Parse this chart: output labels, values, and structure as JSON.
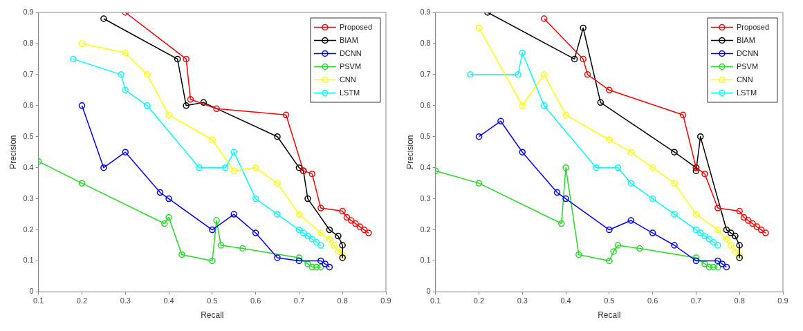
{
  "chart_data": [
    {
      "type": "line",
      "xlabel": "Recall",
      "ylabel": "Precision",
      "xlim": [
        0.1,
        0.9
      ],
      "ylim": [
        0,
        0.9
      ],
      "xticks": [
        0.1,
        0.2,
        0.3,
        0.4,
        0.5,
        0.6,
        0.7,
        0.8,
        0.9
      ],
      "yticks": [
        0,
        0.1,
        0.2,
        0.3,
        0.4,
        0.5,
        0.6,
        0.7,
        0.8,
        0.9
      ],
      "grid": false,
      "legend": "top right",
      "marker": "circle",
      "line_style": "solid",
      "series": [
        {
          "name": "Proposed",
          "color": "#ff0000",
          "x": [
            0.3,
            0.44,
            0.45,
            0.51,
            0.67,
            0.71,
            0.73,
            0.75,
            0.8,
            0.81,
            0.82,
            0.83,
            0.84,
            0.85,
            0.86
          ],
          "values": [
            0.9,
            0.75,
            0.62,
            0.59,
            0.57,
            0.39,
            0.38,
            0.27,
            0.26,
            0.24,
            0.23,
            0.22,
            0.21,
            0.2,
            0.19
          ]
        },
        {
          "name": "BIAM",
          "color": "#000000",
          "x": [
            0.25,
            0.42,
            0.44,
            0.48,
            0.65,
            0.7,
            0.71,
            0.72,
            0.77,
            0.79,
            0.8,
            0.8
          ],
          "values": [
            0.88,
            0.75,
            0.6,
            0.61,
            0.5,
            0.4,
            0.39,
            0.3,
            0.2,
            0.18,
            0.15,
            0.11
          ]
        },
        {
          "name": "DCNN",
          "color": "#0000ff",
          "x": [
            0.2,
            0.25,
            0.3,
            0.38,
            0.4,
            0.5,
            0.55,
            0.6,
            0.65,
            0.7,
            0.75,
            0.76,
            0.77
          ],
          "values": [
            0.6,
            0.4,
            0.45,
            0.32,
            0.3,
            0.2,
            0.25,
            0.19,
            0.11,
            0.1,
            0.1,
            0.09,
            0.08
          ]
        },
        {
          "name": "PSVM",
          "color": "#22dd22",
          "x": [
            0.1,
            0.2,
            0.39,
            0.4,
            0.43,
            0.5,
            0.51,
            0.52,
            0.57,
            0.7,
            0.72,
            0.73,
            0.74,
            0.75
          ],
          "values": [
            0.42,
            0.35,
            0.22,
            0.24,
            0.12,
            0.1,
            0.23,
            0.15,
            0.14,
            0.11,
            0.09,
            0.08,
            0.08,
            0.08
          ]
        },
        {
          "name": "CNN",
          "color": "#ffff00",
          "x": [
            0.2,
            0.3,
            0.35,
            0.4,
            0.5,
            0.55,
            0.6,
            0.65,
            0.7,
            0.75,
            0.77,
            0.78,
            0.79,
            0.8
          ],
          "values": [
            0.8,
            0.77,
            0.7,
            0.57,
            0.49,
            0.39,
            0.4,
            0.35,
            0.25,
            0.19,
            0.17,
            0.15,
            0.13,
            0.12
          ]
        },
        {
          "name": "LSTM",
          "color": "#00ffff",
          "x": [
            0.18,
            0.29,
            0.3,
            0.35,
            0.47,
            0.53,
            0.55,
            0.6,
            0.65,
            0.7,
            0.71,
            0.72,
            0.73,
            0.74,
            0.75
          ],
          "values": [
            0.75,
            0.7,
            0.65,
            0.6,
            0.4,
            0.4,
            0.45,
            0.3,
            0.25,
            0.2,
            0.19,
            0.18,
            0.17,
            0.16,
            0.15
          ]
        }
      ]
    },
    {
      "type": "line",
      "xlabel": "Recall",
      "ylabel": "Precision",
      "xlim": [
        0.1,
        0.9
      ],
      "ylim": [
        0,
        0.9
      ],
      "xticks": [
        0.1,
        0.2,
        0.3,
        0.4,
        0.5,
        0.6,
        0.7,
        0.8,
        0.9
      ],
      "yticks": [
        0,
        0.1,
        0.2,
        0.3,
        0.4,
        0.5,
        0.6,
        0.7,
        0.8,
        0.9
      ],
      "grid": false,
      "legend": "top right",
      "marker": "circle",
      "line_style": "solid",
      "series": [
        {
          "name": "Proposed",
          "color": "#ff0000",
          "x": [
            0.35,
            0.44,
            0.45,
            0.5,
            0.67,
            0.7,
            0.72,
            0.75,
            0.8,
            0.81,
            0.82,
            0.83,
            0.84,
            0.85,
            0.86
          ],
          "values": [
            0.88,
            0.75,
            0.7,
            0.65,
            0.57,
            0.4,
            0.38,
            0.27,
            0.26,
            0.24,
            0.23,
            0.22,
            0.21,
            0.2,
            0.19
          ]
        },
        {
          "name": "BIAM",
          "color": "#000000",
          "x": [
            0.22,
            0.42,
            0.44,
            0.48,
            0.65,
            0.7,
            0.7,
            0.71,
            0.77,
            0.78,
            0.79,
            0.8,
            0.8
          ],
          "values": [
            0.9,
            0.75,
            0.85,
            0.61,
            0.45,
            0.4,
            0.39,
            0.5,
            0.2,
            0.19,
            0.18,
            0.15,
            0.11
          ]
        },
        {
          "name": "DCNN",
          "color": "#0000ff",
          "x": [
            0.2,
            0.25,
            0.3,
            0.38,
            0.4,
            0.5,
            0.55,
            0.6,
            0.65,
            0.7,
            0.75,
            0.76,
            0.77
          ],
          "values": [
            0.5,
            0.55,
            0.45,
            0.32,
            0.3,
            0.2,
            0.23,
            0.19,
            0.15,
            0.1,
            0.1,
            0.09,
            0.08
          ]
        },
        {
          "name": "PSVM",
          "color": "#22dd22",
          "x": [
            0.1,
            0.2,
            0.39,
            0.4,
            0.43,
            0.5,
            0.51,
            0.52,
            0.57,
            0.7,
            0.72,
            0.73,
            0.74,
            0.75
          ],
          "values": [
            0.39,
            0.35,
            0.22,
            0.4,
            0.12,
            0.1,
            0.13,
            0.15,
            0.14,
            0.11,
            0.09,
            0.08,
            0.08,
            0.08
          ]
        },
        {
          "name": "CNN",
          "color": "#ffff00",
          "x": [
            0.2,
            0.3,
            0.35,
            0.4,
            0.5,
            0.55,
            0.6,
            0.65,
            0.7,
            0.75,
            0.77,
            0.78,
            0.79,
            0.8
          ],
          "values": [
            0.85,
            0.6,
            0.7,
            0.57,
            0.49,
            0.45,
            0.4,
            0.35,
            0.25,
            0.2,
            0.17,
            0.15,
            0.13,
            0.12
          ]
        },
        {
          "name": "LSTM",
          "color": "#00ffff",
          "x": [
            0.18,
            0.29,
            0.3,
            0.35,
            0.47,
            0.52,
            0.55,
            0.6,
            0.65,
            0.7,
            0.71,
            0.72,
            0.73,
            0.74,
            0.75
          ],
          "values": [
            0.7,
            0.7,
            0.77,
            0.6,
            0.4,
            0.4,
            0.35,
            0.3,
            0.25,
            0.2,
            0.19,
            0.18,
            0.17,
            0.16,
            0.15
          ]
        }
      ]
    }
  ]
}
